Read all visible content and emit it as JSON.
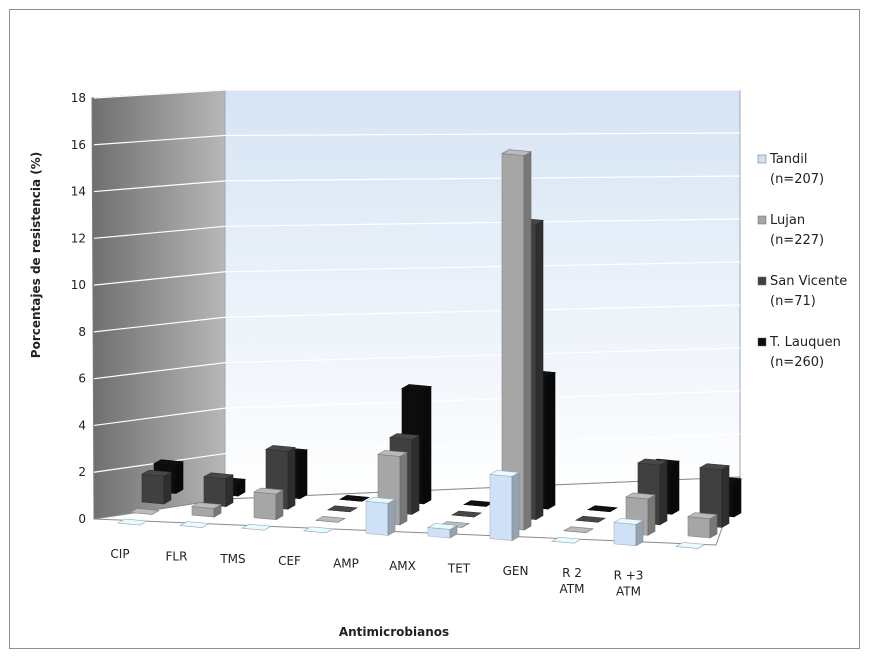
{
  "chart_data": {
    "type": "bar",
    "style": "3d-column",
    "title": "",
    "xlabel": "Antimicrobianos",
    "ylabel": "Porcentajes de resistencia (%)",
    "ylim": [
      0,
      18
    ],
    "yticks": [
      "0",
      "2",
      "4",
      "6",
      "8",
      "10",
      "12",
      "14",
      "16",
      "18"
    ],
    "grid": true,
    "legend_position": "right",
    "categories": [
      [
        "CIP"
      ],
      [
        "FLR"
      ],
      [
        "TMS"
      ],
      [
        "CEF"
      ],
      [
        "AMP"
      ],
      [
        "AMX"
      ],
      [
        "TET"
      ],
      [
        "GEN"
      ],
      [
        "R 2",
        "ATM"
      ],
      [
        "R +3",
        "ATM"
      ]
    ],
    "series": [
      {
        "name": "Tandil",
        "n": "(n=207)",
        "color": "#cfe1f5",
        "values": [
          0,
          0,
          0,
          0,
          1.5,
          0.4,
          3.0,
          0,
          1.0,
          0
        ]
      },
      {
        "name": "Lujan",
        "n": "(n=227)",
        "color": "#a6a6a6",
        "values": [
          0,
          0.4,
          1.2,
          0,
          3.2,
          0,
          17.5,
          0,
          1.7,
          0.9
        ]
      },
      {
        "name": "San Vicente",
        "n": "(n=71)",
        "color": "#404040",
        "values": [
          1.3,
          1.3,
          2.7,
          0,
          3.5,
          0,
          13.8,
          0,
          2.8,
          2.7
        ]
      },
      {
        "name": "T. Lauquen",
        "n": "(n=260)",
        "color": "#0d0d0d",
        "values": [
          1.3,
          0.6,
          2.1,
          0,
          5.3,
          0,
          6.2,
          0,
          2.3,
          1.6
        ]
      }
    ]
  }
}
